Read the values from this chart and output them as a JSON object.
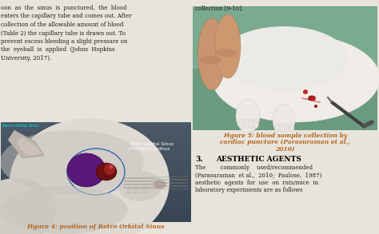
{
  "page_bg": "#e8e4dc",
  "body_text_color": "#1a1a1a",
  "caption_color": "#b5651d",
  "left_text_lines": [
    "oon  as  the  sinus  is  punctured,  the  blood",
    "enters the capillary tube and comes out. After",
    "collection of the allowable amount of blood",
    "(Table 2) the capillary tube is drawn out. To",
    "prevent excess bleeding a slight pressure on",
    "the  eyeball  is  applied  (Johns  Hopkins",
    "University, 2017)."
  ],
  "right_text_top": "collection [9-10].",
  "fig4_label": "Retro-orbital Sinus",
  "fig4_annotation1": "Retro Orbital Sinus",
  "fig4_annotation2": "Medial Canthus",
  "fig4_caption": "Figure 4: position of Retro Orbital Sinus",
  "fig5_caption_line1": "Figure 5: blood sample collection by",
  "fig5_caption_line2": "cardiac puncture (Parasuraman et al.,",
  "fig5_caption_line3": "2010)",
  "section_num": "3.",
  "section_title": "AESTHETIC AGENTS",
  "section_body": [
    "The        commonly    used/recommended",
    "(Parasuraman  et al.,  2010;  Paulose,  1987)",
    "aesthetic  agents  for  use  on  rats/mice  in",
    "laboratory experiments are as follows"
  ],
  "fig4_bg": "#3a5060",
  "fig4_bg2": "#4a6070",
  "fig4_rat_body": "#dedad2",
  "fig4_rat_shadow": "#b0aca4",
  "fig4_ear_outer": "#c8c0b0",
  "fig4_ear_inner": "#e0c8b8",
  "fig4_sinus_color": "#5a1878",
  "fig4_eye_color": "#7a1010",
  "fig4_eye_shine": "#cc4444",
  "fig4_label_color": "#00e8e8",
  "fig5_bg": "#6a9a80",
  "fig5_rat_color": "#f0ece4",
  "fig5_hand_color": "#d4a882",
  "fig5_teal": "#5a8a70"
}
